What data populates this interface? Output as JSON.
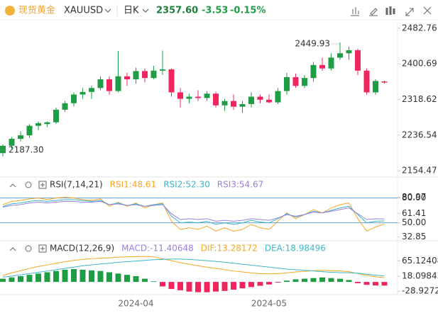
{
  "header": {
    "logo_text": "现货黄金",
    "symbol": "XAUUSD",
    "period": "日K",
    "price": "2357.60",
    "change": "-3.53",
    "change_pct": "-0.15%"
  },
  "chart_data": [
    {
      "type": "candlestick",
      "up_color": "#1f9d45",
      "down_color": "#f0255d",
      "open": [
        2195,
        2212,
        2228,
        2236,
        2258,
        2262,
        2266,
        2295,
        2310,
        2330,
        2336,
        2345,
        2365,
        2338,
        2372,
        2365,
        2384,
        2368,
        2385,
        2388,
        2335,
        2320,
        2325,
        2322,
        2332,
        2305,
        2315,
        2302,
        2308,
        2325,
        2318,
        2312,
        2338,
        2370,
        2350,
        2368,
        2398,
        2390,
        2415,
        2425,
        2432,
        2385,
        2335,
        2360
      ],
      "high": [
        2215,
        2232,
        2245,
        2262,
        2268,
        2268,
        2300,
        2315,
        2335,
        2345,
        2350,
        2372,
        2372,
        2430,
        2380,
        2392,
        2390,
        2396,
        2431,
        2390,
        2345,
        2332,
        2340,
        2338,
        2336,
        2320,
        2330,
        2315,
        2335,
        2330,
        2330,
        2345,
        2380,
        2378,
        2375,
        2405,
        2415,
        2425,
        2449.93,
        2440,
        2435,
        2390,
        2365,
        2362
      ],
      "low": [
        2187.3,
        2205,
        2222,
        2230,
        2248,
        2255,
        2262,
        2290,
        2302,
        2320,
        2320,
        2340,
        2330,
        2335,
        2350,
        2355,
        2358,
        2365,
        2375,
        2325,
        2300,
        2310,
        2315,
        2315,
        2300,
        2292,
        2295,
        2288,
        2300,
        2310,
        2310,
        2308,
        2330,
        2345,
        2345,
        2360,
        2385,
        2385,
        2410,
        2410,
        2375,
        2330,
        2330,
        2355
      ],
      "close": [
        2212,
        2228,
        2236,
        2258,
        2264,
        2266,
        2295,
        2310,
        2330,
        2336,
        2345,
        2365,
        2338,
        2372,
        2365,
        2384,
        2368,
        2385,
        2388,
        2335,
        2320,
        2325,
        2322,
        2332,
        2305,
        2315,
        2302,
        2308,
        2325,
        2318,
        2312,
        2338,
        2370,
        2350,
        2368,
        2398,
        2390,
        2415,
        2425,
        2432,
        2385,
        2335,
        2361.13,
        2357.6
      ],
      "high_label": "2449.93",
      "low_label": "2187.30",
      "ylim": [
        2140,
        2502
      ],
      "yticks": [
        2482.76,
        2400.69,
        2318.62,
        2236.54,
        2154.47
      ]
    },
    {
      "type": "line",
      "title": "RSI(7,14,21)",
      "series": [
        {
          "name": "RSI1:48.61",
          "color": "#f5a623",
          "values": [
            72,
            76,
            77,
            79,
            80,
            78,
            80,
            81,
            80,
            78,
            77,
            79,
            70,
            75,
            70,
            74,
            68,
            72,
            74,
            52,
            42,
            44,
            42,
            46,
            40,
            44,
            40,
            42,
            48,
            44,
            42,
            52,
            62,
            55,
            60,
            66,
            62,
            68,
            72,
            74,
            55,
            40,
            45,
            48.61
          ]
        },
        {
          "name": "RSI2:52.30",
          "color": "#3bb6c9",
          "values": [
            70,
            73,
            74,
            76,
            77,
            76,
            77,
            78,
            78,
            77,
            76,
            77,
            72,
            74,
            71,
            73,
            70,
            72,
            73,
            58,
            50,
            51,
            50,
            52,
            48,
            50,
            48,
            50,
            53,
            51,
            50,
            55,
            61,
            57,
            60,
            64,
            62,
            65,
            68,
            70,
            60,
            50,
            52,
            52.3
          ]
        },
        {
          "name": "RSI3:54.67",
          "color": "#9a7fe0",
          "values": [
            69,
            71,
            72,
            74,
            75,
            74,
            75,
            76,
            76,
            75,
            75,
            76,
            72,
            73,
            71,
            72,
            70,
            71,
            72,
            61,
            54,
            55,
            54,
            55,
            52,
            53,
            52,
            53,
            55,
            54,
            53,
            56,
            60,
            58,
            60,
            63,
            62,
            64,
            66,
            68,
            61,
            54,
            55,
            54.67
          ]
        }
      ],
      "reference_lines": [
        80,
        50
      ],
      "reference_color": "#5b9ee6",
      "ylim": [
        30,
        84
      ],
      "yticks": [
        80.97,
        {
          "value": 80,
          "label": "80.00"
        },
        61.41,
        {
          "value": 50,
          "label": "50.00"
        },
        32.85
      ]
    },
    {
      "type": "combo",
      "title": "MACD(12,26,9)",
      "up_color": "#1f9d45",
      "down_color": "#f0255d",
      "categories": [
        null,
        null,
        null,
        null,
        null,
        null,
        null,
        null,
        null,
        null,
        null,
        null,
        null,
        null,
        null,
        "2024-04",
        null,
        null,
        null,
        null,
        null,
        null,
        null,
        null,
        null,
        null,
        null,
        null,
        null,
        null,
        "2024-05",
        null,
        null,
        null,
        null,
        null,
        null,
        null,
        null,
        null,
        null,
        null,
        null,
        null
      ],
      "series": [
        {
          "name": "MACD:-11.40648",
          "kind": "bar",
          "color": "#9a7fe0",
          "values": [
            10,
            14,
            18,
            22,
            26,
            30,
            34,
            38,
            40,
            38,
            36,
            34,
            30,
            26,
            22,
            18,
            10,
            2,
            -14,
            -22,
            -26,
            -30,
            -32,
            -32,
            -30,
            -28,
            -24,
            -20,
            -16,
            -12,
            -8,
            -2,
            4,
            8,
            10,
            12,
            14,
            12,
            10,
            6,
            -4,
            -9,
            -11,
            -11.40648
          ]
        },
        {
          "name": "DIF:13.28172",
          "kind": "line",
          "color": "#f5a623",
          "values": [
            20,
            28,
            35,
            42,
            48,
            53,
            58,
            63,
            67,
            70,
            72,
            74,
            75,
            77,
            78,
            79,
            79,
            78,
            72,
            66,
            60,
            55,
            50,
            46,
            42,
            38,
            34,
            31,
            28,
            26,
            25,
            26,
            28,
            31,
            33,
            35,
            36,
            35,
            34,
            32,
            26,
            20,
            16,
            13.28172
          ]
        },
        {
          "name": "DEA:18.98496",
          "kind": "line",
          "color": "#3bb6c9",
          "values": [
            15,
            18,
            22,
            26,
            30,
            34,
            38,
            42,
            46,
            50,
            53,
            56,
            58,
            61,
            63,
            65,
            67,
            69,
            70,
            71,
            71,
            70,
            68,
            66,
            64,
            61,
            58,
            55,
            52,
            49,
            46,
            43,
            40,
            38,
            36,
            34,
            32,
            30,
            29,
            28.5,
            27,
            24,
            21,
            18.98496
          ]
        }
      ],
      "ylim": [
        -35,
        95
      ],
      "yticks": [
        65.12408,
        18.09843,
        -28.92723
      ]
    }
  ]
}
